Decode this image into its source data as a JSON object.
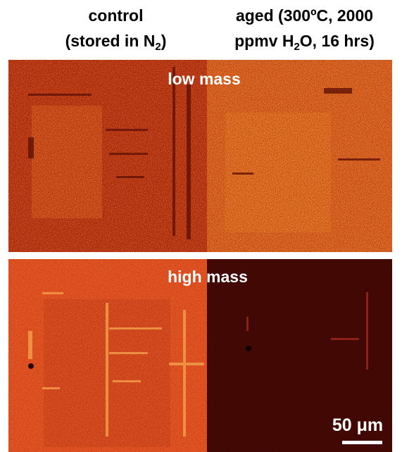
{
  "headers": [
    {
      "lines": [
        [
          {
            "text": "control"
          }
        ],
        [
          {
            "text": "(stored in N"
          },
          {
            "text": "2",
            "sub": true
          },
          {
            "text": ")"
          }
        ]
      ]
    },
    {
      "lines": [
        [
          {
            "text": "aged (300ºC, 2000"
          }
        ],
        [
          {
            "text": "ppmv H"
          },
          {
            "text": "2",
            "sub": true
          },
          {
            "text": "O, 16 hrs)"
          }
        ]
      ]
    }
  ],
  "panels": [
    {
      "label": "low mass"
    },
    {
      "label": "high mass"
    }
  ],
  "scale_bar": {
    "label": "50 μm"
  }
}
